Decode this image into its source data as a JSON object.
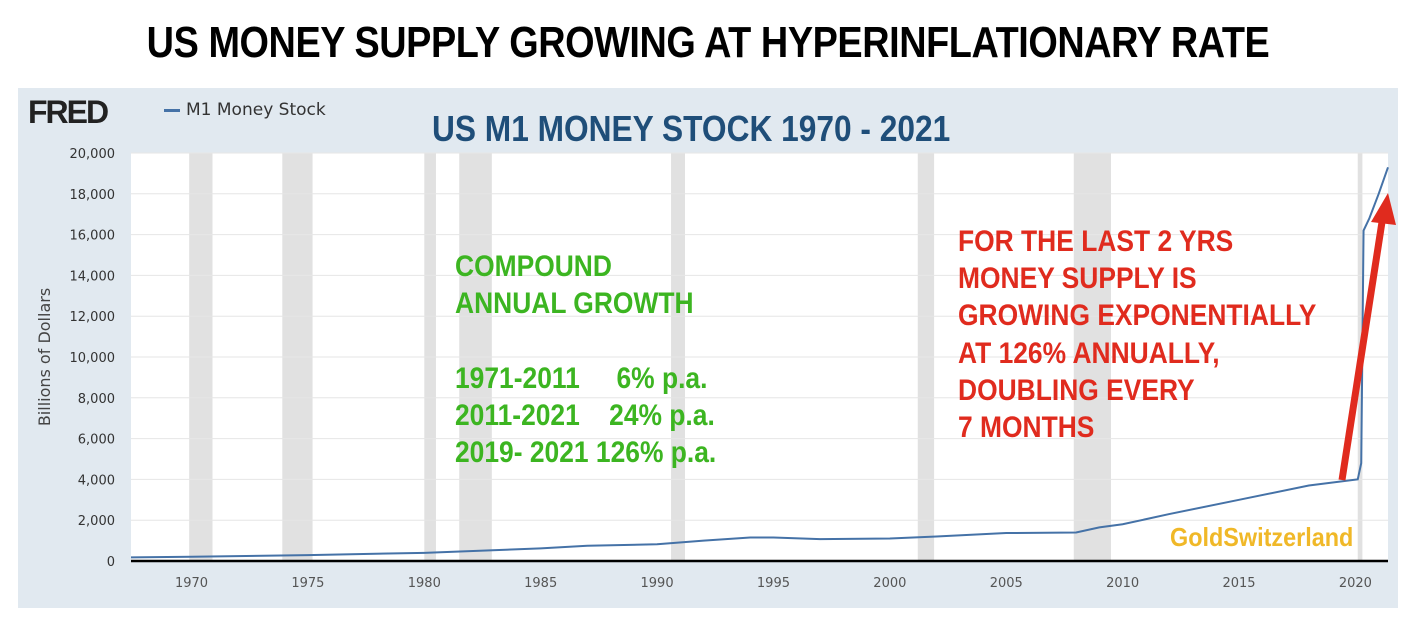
{
  "headline": "US MONEY SUPPLY GROWING AT HYPERINFLATIONARY RATE",
  "brand": "FRED",
  "subtitle": "US M1 MONEY STOCK  1970 - 2021",
  "annotations": {
    "green": [
      "COMPOUND",
      "ANNUAL GROWTH",
      "",
      "1971-2011     6% p.a.",
      "2011-2021    24% p.a.",
      "2019- 2021 126% p.a."
    ],
    "red": [
      "FOR THE LAST 2 YRS",
      "MONEY SUPPLY IS",
      "GROWING EXPONENTIALLY",
      "AT 126% ANNUALLY,",
      "DOUBLING EVERY",
      "7 MONTHS"
    ],
    "watermark": "GoldSwitzerland"
  },
  "colors": {
    "series": "#4572a7",
    "recession": "#e1e1e1",
    "arrow": "#e02b1e"
  },
  "chart_data": {
    "type": "line",
    "title": "US M1 MONEY STOCK  1970 - 2021",
    "xlabel": "",
    "ylabel": "Billions of Dollars",
    "xlim": [
      1967.4,
      2021.4
    ],
    "ylim": [
      0,
      20000
    ],
    "grid": true,
    "legend": {
      "position": "top-left",
      "entries": [
        "M1 Money Stock"
      ]
    },
    "xticks": [
      1970,
      1975,
      1980,
      1985,
      1990,
      1995,
      2000,
      2005,
      2010,
      2015,
      2020
    ],
    "yticks": [
      0,
      2000,
      4000,
      6000,
      8000,
      10000,
      12000,
      14000,
      16000,
      18000,
      20000
    ],
    "ytick_labels": [
      "0",
      "2,000",
      "4,000",
      "6,000",
      "8,000",
      "10,000",
      "12,000",
      "14,000",
      "16,000",
      "18,000",
      "20,000"
    ],
    "recessions": [
      [
        1969.9,
        1970.9
      ],
      [
        1973.9,
        1975.2
      ],
      [
        1980.0,
        1980.5
      ],
      [
        1981.5,
        1982.9
      ],
      [
        1990.6,
        1991.2
      ],
      [
        2001.2,
        2001.9
      ],
      [
        2007.9,
        2009.5
      ],
      [
        2020.1,
        2020.3
      ]
    ],
    "series": [
      {
        "name": "M1 Money Stock",
        "x": [
          1967.4,
          1970,
          1975,
          1980,
          1985,
          1987,
          1990,
          1992,
          1994,
          1995,
          1997,
          2000,
          2002,
          2005,
          2008,
          2009,
          2010,
          2012,
          2015,
          2018,
          2020.1,
          2020.25,
          2020.35,
          2020.6,
          2021,
          2021.4
        ],
        "y": [
          180,
          210,
          290,
          400,
          620,
          750,
          820,
          1000,
          1150,
          1150,
          1070,
          1100,
          1200,
          1370,
          1400,
          1650,
          1800,
          2300,
          3000,
          3700,
          4000,
          4800,
          16200,
          16800,
          18000,
          19300
        ]
      }
    ]
  }
}
